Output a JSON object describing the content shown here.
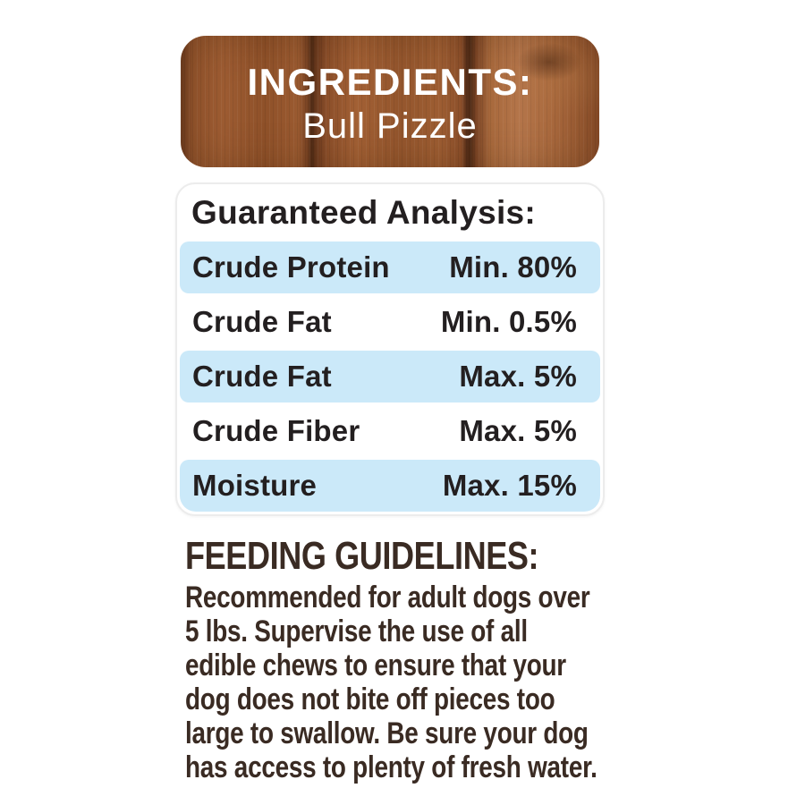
{
  "ingredients": {
    "title": "INGREDIENTS:",
    "value": "Bull Pizzle"
  },
  "guaranteed_analysis": {
    "title": "Guaranteed Analysis:",
    "rows": [
      {
        "label": "Crude Protein",
        "value": "Min. 80%"
      },
      {
        "label": "Crude Fat",
        "value": "Min. 0.5%"
      },
      {
        "label": "Crude Fat",
        "value": "Max. 5%"
      },
      {
        "label": "Crude Fiber",
        "value": "Max. 5%"
      },
      {
        "label": "Moisture",
        "value": "Max. 15%"
      }
    ]
  },
  "feeding_guidelines": {
    "title": "FEEDING GUIDELINES:",
    "lines": [
      "Recommended for adult dogs over",
      "5 lbs. Supervise the use of all",
      "edible chews to ensure that your",
      "dog does not bite off pieces too",
      "large to swallow. Be sure your dog",
      "has access to plenty of fresh water."
    ]
  },
  "colors": {
    "row_highlight": "#cbe9f9",
    "table_text": "#231f20",
    "feeding_text": "#3a2b23",
    "wood_base": "#9a5a30",
    "panel_text": "#ffffff",
    "table_border": "#ececec"
  }
}
